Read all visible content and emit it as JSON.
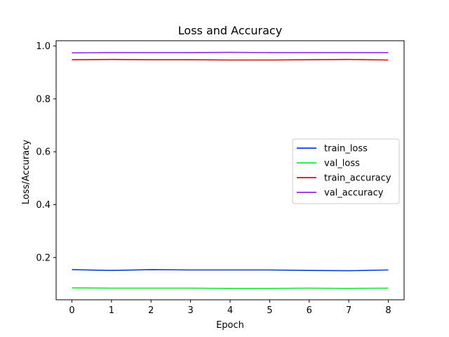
{
  "chart_data": {
    "type": "line",
    "title": "Loss and Accuracy",
    "xlabel": "Epoch",
    "ylabel": "Loss/Accuracy",
    "x": [
      0,
      1,
      2,
      3,
      4,
      5,
      6,
      7,
      8
    ],
    "xticks": [
      "0",
      "1",
      "2",
      "3",
      "4",
      "5",
      "6",
      "7",
      "8"
    ],
    "yticks": [
      "0.2",
      "0.4",
      "0.6",
      "0.8",
      "1.0"
    ],
    "ytick_values": [
      0.2,
      0.4,
      0.6,
      0.8,
      1.0
    ],
    "xlim": [
      -0.4,
      8.4
    ],
    "ylim": [
      0.04,
      1.02
    ],
    "grid": false,
    "legend": "center-right",
    "series": [
      {
        "name": "train_loss",
        "color": "#0a3fd6",
        "values": [
          0.154,
          0.151,
          0.154,
          0.153,
          0.153,
          0.153,
          0.151,
          0.15,
          0.153
        ]
      },
      {
        "name": "val_loss",
        "color": "#1ee63c",
        "values": [
          0.085,
          0.084,
          0.084,
          0.084,
          0.083,
          0.083,
          0.084,
          0.083,
          0.084
        ]
      },
      {
        "name": "train_accuracy",
        "color": "#d40b0b",
        "values": [
          0.948,
          0.949,
          0.948,
          0.948,
          0.947,
          0.947,
          0.948,
          0.949,
          0.947
        ]
      },
      {
        "name": "val_accuracy",
        "color": "#8a2be2",
        "values": [
          0.974,
          0.975,
          0.975,
          0.975,
          0.976,
          0.975,
          0.975,
          0.975,
          0.975
        ]
      }
    ]
  }
}
